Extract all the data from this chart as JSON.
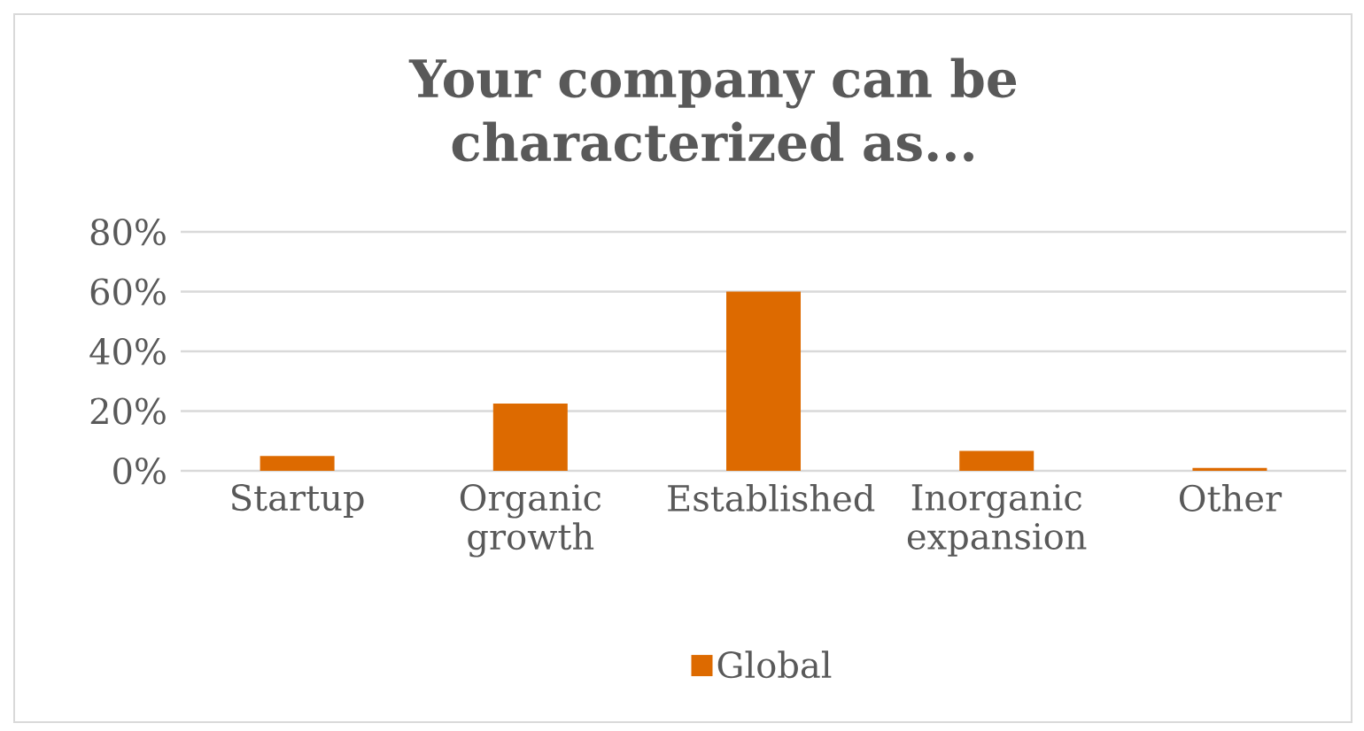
{
  "chart_data": {
    "type": "bar",
    "title": "Your company can be characterized as...",
    "categories": [
      "Startup",
      "Organic growth",
      "Established",
      "Inorganic expansion",
      "Other"
    ],
    "series": [
      {
        "name": "Global",
        "color": "#dd6a00",
        "values": [
          5,
          22.5,
          60,
          6.7,
          1
        ]
      }
    ],
    "ylim": [
      0,
      80
    ],
    "yticks": [
      {
        "value": 0,
        "label": "0%"
      },
      {
        "value": 20,
        "label": "20%"
      },
      {
        "value": 40,
        "label": "40%"
      },
      {
        "value": 60,
        "label": "60%"
      },
      {
        "value": 80,
        "label": "80%"
      }
    ],
    "grid": "y",
    "legend": "bottom"
  }
}
